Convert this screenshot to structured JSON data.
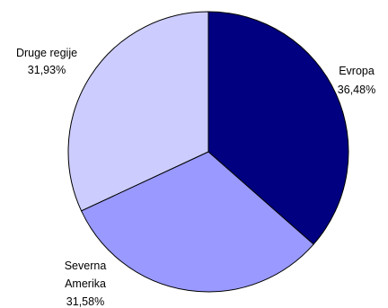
{
  "chart_data": {
    "type": "pie",
    "slices": [
      {
        "label_lines": [
          "Evropa"
        ],
        "value_label": "36,48%",
        "value": 36.48,
        "color": "#000080"
      },
      {
        "label_lines": [
          "Severna",
          "Amerika"
        ],
        "value_label": "31,58%",
        "value": 31.58,
        "color": "#9999ff"
      },
      {
        "label_lines": [
          "Druge regije"
        ],
        "value_label": "31,93%",
        "value": 31.93,
        "color": "#ccccff"
      }
    ],
    "legend": "none",
    "start_angle": "12 o'clock",
    "direction": "clockwise"
  }
}
